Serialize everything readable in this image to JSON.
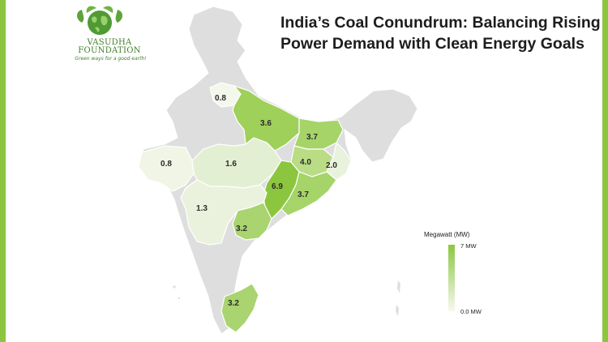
{
  "title": "India’s Coal Conundrum: Balancing Rising Power Demand with Clean Energy Goals",
  "logo": {
    "name_line1": "VASUDHA",
    "name_line2": "FOUNDATION",
    "tagline": "Green ways for a good earth!"
  },
  "legend": {
    "title": "Megawatt (MW)",
    "max_label": "7 MW",
    "min_label": "0.0 MW",
    "max_color": "#8cc63f",
    "min_color": "#f6f9f0"
  },
  "states": [
    {
      "name": "Uttarakhand",
      "value": "0.8"
    },
    {
      "name": "Uttar Pradesh",
      "value": "3.6"
    },
    {
      "name": "Bihar",
      "value": "3.7"
    },
    {
      "name": "Gujarat",
      "value": "0.8"
    },
    {
      "name": "Madhya Pradesh",
      "value": "1.6"
    },
    {
      "name": "Jharkhand",
      "value": "4.0"
    },
    {
      "name": "West Bengal",
      "value": "2.0"
    },
    {
      "name": "Chhattisgarh",
      "value": "6.9"
    },
    {
      "name": "Odisha",
      "value": "3.7"
    },
    {
      "name": "Maharashtra",
      "value": "1.3"
    },
    {
      "name": "Telangana",
      "value": "3.2"
    },
    {
      "name": "Tamil Nadu",
      "value": "3.2"
    }
  ]
}
